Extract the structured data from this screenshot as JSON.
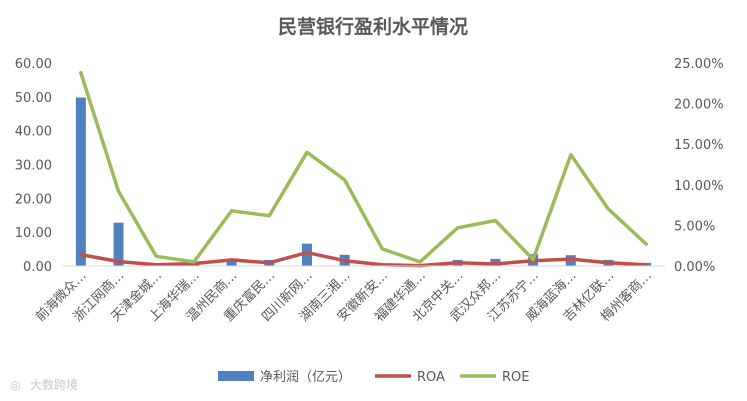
{
  "chart_data": {
    "type": "bar",
    "title": "民营银行盈利水平情况",
    "categories": [
      "前海微众…",
      "浙江网商…",
      "天津金城…",
      "上海华瑞…",
      "温州民商…",
      "重庆富民…",
      "四川新网…",
      "湖南三湘…",
      "安徽新安…",
      "福建华通…",
      "北京中关…",
      "武汉众邦…",
      "江苏苏宁…",
      "威海蓝海…",
      "吉林亿联…",
      "梅州客商…"
    ],
    "series": [
      {
        "name": "净利润（亿元）",
        "type": "bar",
        "axis": "left",
        "color": "#4f81bd",
        "values": [
          49.8,
          12.8,
          0.2,
          0.6,
          1.5,
          1.8,
          6.6,
          3.3,
          0.5,
          0.1,
          1.8,
          2.1,
          3.5,
          3.2,
          1.8,
          0.9
        ]
      },
      {
        "name": "ROA",
        "type": "line",
        "axis": "right",
        "color": "#c0504d",
        "values": [
          1.4,
          0.55,
          0.15,
          0.3,
          0.75,
          0.4,
          1.65,
          0.65,
          0.15,
          0.05,
          0.4,
          0.25,
          0.65,
          0.85,
          0.4,
          0.15
        ]
      },
      {
        "name": "ROE",
        "type": "line",
        "axis": "right",
        "color": "#9bbb59",
        "values": [
          23.8,
          9.2,
          1.2,
          0.5,
          6.8,
          6.2,
          14.0,
          10.6,
          2.1,
          0.5,
          4.7,
          5.6,
          0.8,
          13.7,
          7.0,
          2.7
        ]
      }
    ],
    "ylim_left": [
      0,
      60
    ],
    "yticks_left": [
      "0.00",
      "10.00",
      "20.00",
      "30.00",
      "40.00",
      "50.00",
      "60.00"
    ],
    "ylim_right": [
      0,
      25
    ],
    "yticks_right": [
      "0.00%",
      "5.00%",
      "10.00%",
      "15.00%",
      "20.00%",
      "25.00%"
    ],
    "legend_position": "bottom",
    "grid": false
  },
  "watermark": "大数跨境"
}
